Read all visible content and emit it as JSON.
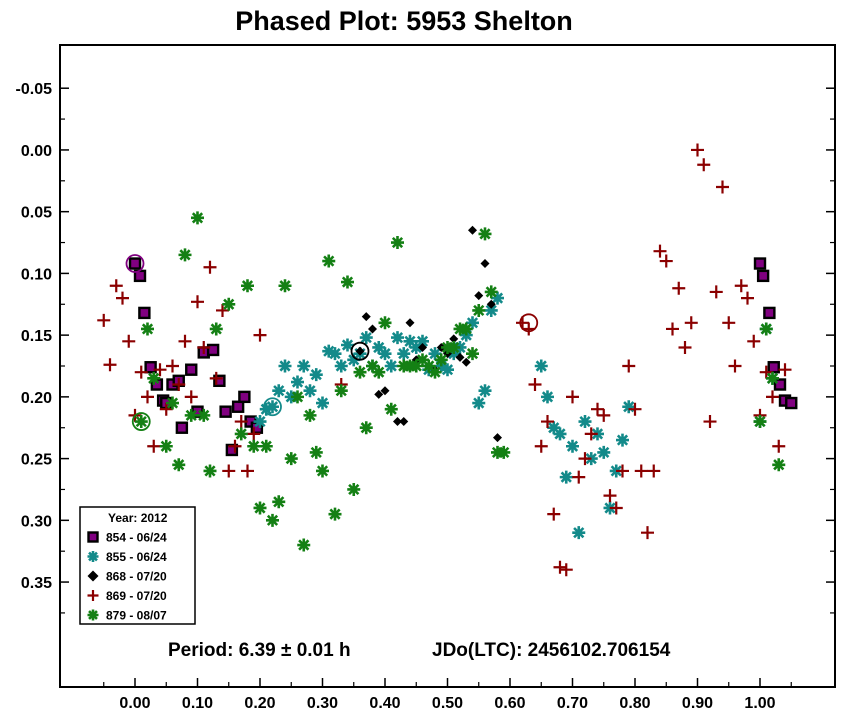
{
  "chart_data": {
    "type": "scatter",
    "title": "Phased Plot: 5953 Shelton",
    "xlabel": "",
    "ylabel": "",
    "xlim": [
      -0.12,
      1.12
    ],
    "ylim": [
      -0.085,
      0.435
    ],
    "y_inverted": true,
    "grid": false,
    "x_ticks": [
      "0.00",
      "0.10",
      "0.20",
      "0.30",
      "0.40",
      "0.50",
      "0.60",
      "0.70",
      "0.80",
      "0.90",
      "1.00"
    ],
    "y_ticks": [
      "-0.05",
      "0.00",
      "0.05",
      "0.10",
      "0.15",
      "0.20",
      "0.25",
      "0.30",
      "0.35"
    ],
    "annotations": {
      "period": "Period: 6.39 ± 0.01 h",
      "jdo": "JDo(LTC): 2456102.706154"
    },
    "legend": {
      "title": "Year: 2012",
      "position": "bottom-left"
    },
    "series": [
      {
        "name": "854 - 06/24",
        "marker": "square",
        "color": "#800080",
        "x": [
          0.0,
          0.008,
          0.015,
          0.025,
          0.035,
          0.045,
          0.05,
          0.06,
          0.07,
          0.075,
          0.09,
          0.1,
          0.11,
          0.125,
          0.135,
          0.145,
          0.155,
          0.165,
          0.175,
          0.185,
          0.195,
          1.0,
          1.005,
          1.015,
          1.022,
          1.032,
          1.04,
          1.05
        ],
        "y": [
          0.092,
          0.102,
          0.132,
          0.176,
          0.19,
          0.203,
          0.205,
          0.19,
          0.187,
          0.225,
          0.178,
          0.212,
          0.164,
          0.162,
          0.187,
          0.212,
          0.243,
          0.208,
          0.2,
          0.22,
          0.225,
          0.092,
          0.102,
          0.132,
          0.176,
          0.19,
          0.203,
          0.205
        ],
        "circled_x": 0.0,
        "circled_y": 0.092
      },
      {
        "name": "855 - 06/24",
        "marker": "asterisk",
        "color": "#138a8a",
        "x": [
          0.2,
          0.21,
          0.22,
          0.23,
          0.24,
          0.25,
          0.26,
          0.27,
          0.28,
          0.29,
          0.3,
          0.31,
          0.32,
          0.33,
          0.34,
          0.35,
          0.36,
          0.37,
          0.38,
          0.39,
          0.4,
          0.41,
          0.42,
          0.43,
          0.44,
          0.45,
          0.46,
          0.47,
          0.48,
          0.49,
          0.5,
          0.51,
          0.52,
          0.53,
          0.54,
          0.55,
          0.56,
          0.57,
          0.58,
          0.65,
          0.66,
          0.67,
          0.68,
          0.69,
          0.7,
          0.71,
          0.72,
          0.73,
          0.74,
          0.75,
          0.76,
          0.77,
          0.78,
          0.79,
          1.0,
          1.01,
          1.02
        ],
        "y": [
          0.22,
          0.21,
          0.208,
          0.195,
          0.175,
          0.2,
          0.188,
          0.175,
          0.195,
          0.182,
          0.205,
          0.163,
          0.165,
          0.175,
          0.158,
          0.17,
          0.165,
          0.152,
          0.175,
          0.16,
          0.165,
          0.175,
          0.152,
          0.165,
          0.155,
          0.16,
          0.155,
          0.178,
          0.165,
          0.175,
          0.178,
          0.165,
          0.16,
          0.15,
          0.14,
          0.205,
          0.195,
          0.13,
          0.12,
          0.175,
          0.2,
          0.225,
          0.23,
          0.265,
          0.24,
          0.31,
          0.22,
          0.25,
          0.23,
          0.245,
          0.29,
          0.26,
          0.235,
          0.208,
          0.22,
          0.145,
          0.185
        ],
        "circled_x": 0.22,
        "circled_y": 0.208
      },
      {
        "name": "868 - 07/20",
        "marker": "diamond",
        "color": "#000000",
        "x": [
          0.36,
          0.37,
          0.38,
          0.39,
          0.4,
          0.41,
          0.42,
          0.43,
          0.44,
          0.45,
          0.46,
          0.47,
          0.48,
          0.49,
          0.5,
          0.51,
          0.52,
          0.53,
          0.54,
          0.55,
          0.56,
          0.57,
          0.58
        ],
        "y": [
          0.163,
          0.135,
          0.145,
          0.198,
          0.195,
          0.21,
          0.22,
          0.22,
          0.14,
          0.17,
          0.16,
          0.175,
          0.178,
          0.16,
          0.165,
          0.153,
          0.168,
          0.172,
          0.065,
          0.118,
          0.092,
          0.125,
          0.233
        ],
        "circled_x": 0.36,
        "circled_y": 0.163
      },
      {
        "name": "869 - 07/20",
        "marker": "plus",
        "color": "#8b0000",
        "x": [
          -0.05,
          -0.04,
          -0.03,
          -0.02,
          -0.01,
          0.0,
          0.01,
          0.02,
          0.03,
          0.04,
          0.05,
          0.06,
          0.07,
          0.08,
          0.09,
          0.1,
          0.11,
          0.12,
          0.13,
          0.14,
          0.15,
          0.16,
          0.17,
          0.18,
          0.19,
          0.2,
          0.33,
          0.62,
          0.63,
          0.64,
          0.65,
          0.66,
          0.67,
          0.68,
          0.69,
          0.7,
          0.71,
          0.72,
          0.73,
          0.74,
          0.75,
          0.76,
          0.77,
          0.78,
          0.79,
          0.8,
          0.81,
          0.82,
          0.83,
          0.84,
          0.85,
          0.86,
          0.87,
          0.88,
          0.89,
          0.9,
          0.91,
          0.92,
          0.93,
          0.94,
          0.95,
          0.96,
          0.97,
          0.98,
          0.99,
          1.0,
          1.01,
          1.02,
          1.03,
          1.04
        ],
        "y": [
          0.138,
          0.174,
          0.11,
          0.12,
          0.155,
          0.215,
          0.18,
          0.2,
          0.24,
          0.178,
          0.21,
          0.175,
          0.19,
          0.155,
          0.2,
          0.123,
          0.16,
          0.095,
          0.185,
          0.13,
          0.26,
          0.24,
          0.22,
          0.26,
          0.23,
          0.15,
          0.19,
          0.14,
          0.145,
          0.19,
          0.24,
          0.22,
          0.295,
          0.338,
          0.34,
          0.2,
          0.265,
          0.25,
          0.23,
          0.21,
          0.215,
          0.28,
          0.29,
          0.26,
          0.175,
          0.21,
          0.26,
          0.31,
          0.26,
          0.082,
          0.09,
          0.145,
          0.112,
          0.16,
          0.14,
          0.0,
          0.012,
          0.22,
          0.115,
          0.03,
          0.14,
          0.175,
          0.11,
          0.12,
          0.155,
          0.215,
          0.18,
          0.2,
          0.24,
          0.178
        ],
        "circled_x": 0.63,
        "circled_y": 0.14
      },
      {
        "name": "879 - 08/07",
        "marker": "asterisk",
        "color": "#148014",
        "x": [
          0.01,
          0.02,
          0.03,
          0.05,
          0.06,
          0.07,
          0.08,
          0.09,
          0.1,
          0.11,
          0.12,
          0.13,
          0.15,
          0.17,
          0.18,
          0.19,
          0.2,
          0.21,
          0.22,
          0.23,
          0.24,
          0.25,
          0.26,
          0.27,
          0.28,
          0.29,
          0.3,
          0.31,
          0.32,
          0.33,
          0.34,
          0.35,
          0.36,
          0.37,
          0.38,
          0.39,
          0.4,
          0.41,
          0.42,
          0.43,
          0.44,
          0.45,
          0.46,
          0.47,
          0.48,
          0.49,
          0.5,
          0.51,
          0.52,
          0.53,
          0.54,
          0.55,
          0.56,
          0.57,
          0.58,
          0.59,
          1.0,
          1.01,
          1.02,
          1.03
        ],
        "y": [
          0.22,
          0.145,
          0.185,
          0.24,
          0.205,
          0.255,
          0.085,
          0.215,
          0.055,
          0.215,
          0.26,
          0.145,
          0.125,
          0.23,
          0.11,
          0.24,
          0.29,
          0.24,
          0.3,
          0.285,
          0.11,
          0.25,
          0.2,
          0.32,
          0.215,
          0.245,
          0.26,
          0.09,
          0.295,
          0.195,
          0.107,
          0.275,
          0.18,
          0.225,
          0.175,
          0.18,
          0.14,
          0.21,
          0.075,
          0.175,
          0.175,
          0.175,
          0.17,
          0.175,
          0.18,
          0.17,
          0.16,
          0.16,
          0.145,
          0.145,
          0.165,
          0.13,
          0.068,
          0.115,
          0.245,
          0.245,
          0.22,
          0.145,
          0.185,
          0.255
        ],
        "circled_x": 0.01,
        "circled_y": 0.22
      }
    ]
  }
}
